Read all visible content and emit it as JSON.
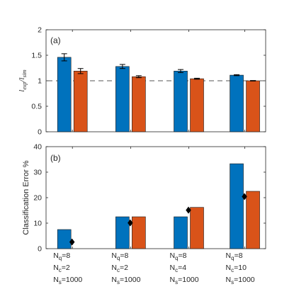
{
  "chart_data": [
    {
      "type": "bar",
      "panel_label": "(a)",
      "ylabel": "l_exp/l_sim",
      "ylim": [
        0,
        2
      ],
      "yticks": [
        "0",
        "0.5",
        "1",
        "1.5",
        "2"
      ],
      "reference_line": 1,
      "categories": [
        "N_q=8 N_c=2 N_s=1000",
        "N_q=8 N_c=2 N_s=1000",
        "N_q=8 N_c=4 N_s=1000",
        "N_q=8 N_c=10 N_s=1000"
      ],
      "series": [
        {
          "color": "#0072BD",
          "values": [
            1.46,
            1.28,
            1.19,
            1.11
          ],
          "errors": [
            0.07,
            0.04,
            0.03,
            0.01
          ]
        },
        {
          "color": "#D95319",
          "values": [
            1.19,
            1.08,
            1.04,
            1.0
          ],
          "errors": [
            0.05,
            0.02,
            0.01,
            0.005
          ]
        }
      ],
      "grid": false
    },
    {
      "type": "bar",
      "panel_label": "(b)",
      "ylabel": "Classification Error %",
      "ylim": [
        0,
        40
      ],
      "yticks": [
        "0",
        "10",
        "20",
        "30",
        "40"
      ],
      "categories": [
        "N_q=8 N_c=2 N_s=1000",
        "N_q=8 N_c=2 N_s=1000",
        "N_q=8 N_c=4 N_s=1000",
        "N_q=8 N_c=10 N_s=1000"
      ],
      "series": [
        {
          "color": "#0072BD",
          "values": [
            7.5,
            12.5,
            12.5,
            33.3
          ]
        },
        {
          "color": "#D95319",
          "values": [
            0,
            12.5,
            16.2,
            22.5
          ]
        }
      ],
      "markers": {
        "shape": "diamond",
        "color": "#000000",
        "values": [
          2.6,
          10.1,
          15.1,
          20.4
        ]
      },
      "grid": false
    }
  ],
  "category_labels": [
    {
      "q": "8",
      "c": "2",
      "s": "1000"
    },
    {
      "q": "8",
      "c": "2",
      "s": "1000"
    },
    {
      "q": "8",
      "c": "4",
      "s": "1000"
    },
    {
      "q": "8",
      "c": "10",
      "s": "1000"
    }
  ],
  "axis_text": {
    "top_ylabel_main_1": "l",
    "top_ylabel_sub_1": "exp",
    "top_ylabel_slash": "/",
    "top_ylabel_main_2": "l",
    "top_ylabel_sub_2": "sim",
    "bottom_ylabel": "Classification Error %",
    "label_q_prefix": "N",
    "label_q_sub": "q",
    "label_c_prefix": "N",
    "label_c_sub": "c",
    "label_s_prefix": "N",
    "label_s_sub": "s"
  }
}
